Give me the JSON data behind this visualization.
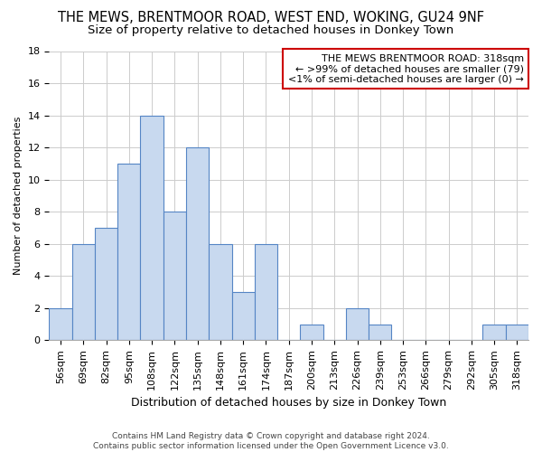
{
  "title": "THE MEWS, BRENTMOOR ROAD, WEST END, WOKING, GU24 9NF",
  "subtitle": "Size of property relative to detached houses in Donkey Town",
  "xlabel": "Distribution of detached houses by size in Donkey Town",
  "ylabel": "Number of detached properties",
  "footer_line1": "Contains HM Land Registry data © Crown copyright and database right 2024.",
  "footer_line2": "Contains public sector information licensed under the Open Government Licence v3.0.",
  "bar_labels": [
    "56sqm",
    "69sqm",
    "82sqm",
    "95sqm",
    "108sqm",
    "122sqm",
    "135sqm",
    "148sqm",
    "161sqm",
    "174sqm",
    "187sqm",
    "200sqm",
    "213sqm",
    "226sqm",
    "239sqm",
    "253sqm",
    "266sqm",
    "279sqm",
    "292sqm",
    "305sqm",
    "318sqm"
  ],
  "bar_values": [
    2,
    6,
    7,
    11,
    14,
    8,
    12,
    6,
    3,
    6,
    0,
    1,
    0,
    2,
    1,
    0,
    0,
    0,
    0,
    1,
    1
  ],
  "bar_color": "#c8d9ef",
  "bar_edge_color": "#5585c5",
  "annotation_line1": "THE MEWS BRENTMOOR ROAD: 318sqm",
  "annotation_line2": "← >99% of detached houses are smaller (79)",
  "annotation_line3": "<1% of semi-detached houses are larger (0) →",
  "annotation_box_edge_color": "#cc0000",
  "ylim": [
    0,
    18
  ],
  "yticks": [
    0,
    2,
    4,
    6,
    8,
    10,
    12,
    14,
    16,
    18
  ],
  "background_color": "#ffffff",
  "grid_color": "#cccccc",
  "title_fontsize": 10.5,
  "subtitle_fontsize": 9.5,
  "xlabel_fontsize": 9,
  "ylabel_fontsize": 8,
  "tick_fontsize": 8,
  "annot_fontsize": 8,
  "footer_fontsize": 6.5
}
